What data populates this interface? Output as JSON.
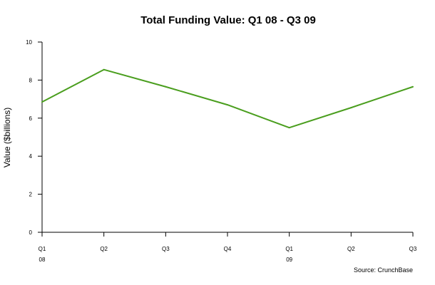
{
  "chart_data": {
    "type": "line",
    "title": "Total Funding Value: Q1 08 - Q3 09",
    "xlabel": "",
    "ylabel": "Value ($billions)",
    "categories": [
      "Q1 08",
      "Q2",
      "Q3",
      "Q4",
      "Q1 09",
      "Q2",
      "Q3"
    ],
    "x_tick_labels": [
      {
        "top": "Q1",
        "bottom": "08"
      },
      {
        "top": "Q2",
        "bottom": ""
      },
      {
        "top": "Q3",
        "bottom": ""
      },
      {
        "top": "Q4",
        "bottom": ""
      },
      {
        "top": "Q1",
        "bottom": "09"
      },
      {
        "top": "Q2",
        "bottom": ""
      },
      {
        "top": "Q3",
        "bottom": ""
      }
    ],
    "series": [
      {
        "values": [
          6.85,
          8.55,
          7.65,
          6.7,
          5.5,
          6.55,
          7.65
        ],
        "color": "#4a9e1e"
      }
    ],
    "ylim": [
      0,
      10
    ],
    "yticks": [
      0,
      2,
      4,
      6,
      8,
      10
    ],
    "grid": false,
    "legend": "none",
    "annotations": [
      "Source: CrunchBase"
    ]
  }
}
